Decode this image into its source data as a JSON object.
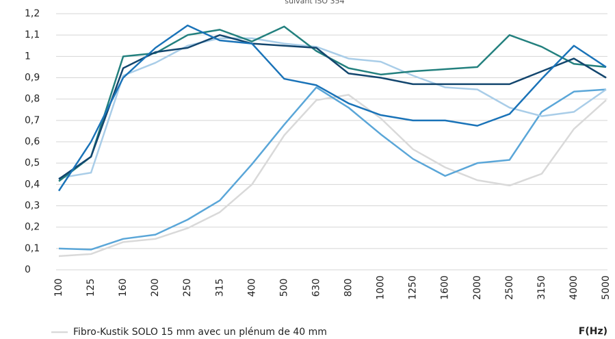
{
  "chart_data": {
    "type": "line",
    "subtitle": "suivant ISO 354",
    "xlabel": "F(Hz)",
    "categories": [
      "100",
      "125",
      "160",
      "200",
      "250",
      "315",
      "400",
      "500",
      "630",
      "800",
      "1000",
      "1250",
      "1600",
      "2000",
      "2500",
      "3150",
      "4000",
      "5000"
    ],
    "ylim": [
      0,
      1.2
    ],
    "yticks": [
      0,
      {
        "value": 0.1,
        "label": "0,1"
      },
      {
        "value": 0.2,
        "label": "0,2"
      },
      {
        "value": 0.3,
        "label": "0,3"
      },
      {
        "value": 0.4,
        "label": "0,4"
      },
      {
        "value": 0.5,
        "label": "0,5"
      },
      {
        "value": 0.6,
        "label": "0,6"
      },
      {
        "value": 0.7,
        "label": "0,7"
      },
      {
        "value": 0.8,
        "label": "0,8"
      },
      {
        "value": 0.9,
        "label": "0,9"
      },
      1,
      {
        "value": 1.1,
        "label": "1,1"
      },
      {
        "value": 1.2,
        "label": "1,2"
      }
    ],
    "grid": true,
    "series": [
      {
        "name": "Fibro-Kustik SOLO 15 mm avec un plénum de 40 mm",
        "color": "#d9d9d9",
        "values": [
          0.064,
          0.074,
          0.13,
          0.145,
          0.195,
          0.27,
          0.4,
          0.63,
          0.795,
          0.82,
          0.71,
          0.565,
          0.48,
          0.42,
          0.395,
          0.45,
          0.66,
          0.795
        ]
      },
      {
        "color": "#5aa6d8",
        "values": [
          0.1,
          0.095,
          0.145,
          0.165,
          0.235,
          0.325,
          0.495,
          0.68,
          0.855,
          0.76,
          0.635,
          0.52,
          0.44,
          0.5,
          0.515,
          0.74,
          0.835,
          0.845
        ]
      },
      {
        "color": "#a9cde8",
        "values": [
          0.43,
          0.455,
          0.91,
          0.97,
          1.05,
          1.085,
          1.085,
          1.06,
          1.045,
          0.99,
          0.975,
          0.91,
          0.855,
          0.845,
          0.76,
          0.72,
          0.74,
          0.845
        ]
      },
      {
        "color": "#23807e",
        "values": [
          0.415,
          0.53,
          1.0,
          1.015,
          1.1,
          1.125,
          1.07,
          1.14,
          1.025,
          0.945,
          0.915,
          0.93,
          0.94,
          0.95,
          1.1,
          1.045,
          0.965,
          0.95
        ]
      },
      {
        "color": "#13466e",
        "values": [
          0.425,
          0.53,
          0.945,
          1.02,
          1.04,
          1.1,
          1.06,
          1.05,
          1.04,
          0.92,
          0.9,
          0.87,
          0.87,
          0.87,
          0.87,
          0.93,
          0.99,
          0.9
        ]
      },
      {
        "color": "#1a73b8",
        "values": [
          0.37,
          0.6,
          0.9,
          1.04,
          1.145,
          1.075,
          1.06,
          0.895,
          0.865,
          0.78,
          0.725,
          0.7,
          0.7,
          0.675,
          0.73,
          0.895,
          1.05,
          0.95
        ]
      }
    ]
  }
}
